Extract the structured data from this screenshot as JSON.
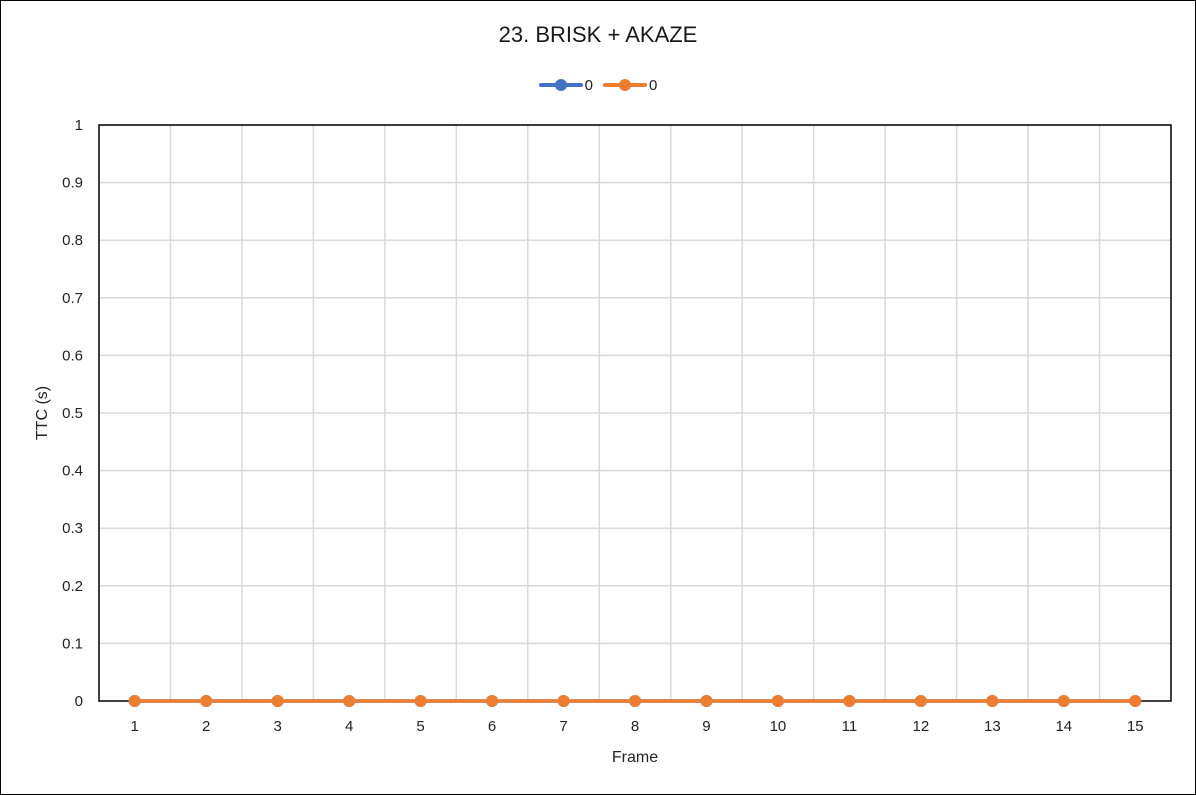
{
  "chart_data": {
    "type": "line",
    "title": "23. BRISK + AKAZE",
    "xlabel": "Frame",
    "ylabel": "TTC (s)",
    "categories": [
      "1",
      "2",
      "3",
      "4",
      "5",
      "6",
      "7",
      "8",
      "9",
      "10",
      "11",
      "12",
      "13",
      "14",
      "15"
    ],
    "y_ticks": [
      "0",
      "0.1",
      "0.2",
      "0.3",
      "0.4",
      "0.5",
      "0.6",
      "0.7",
      "0.8",
      "0.9",
      "1"
    ],
    "ylim": [
      0,
      1
    ],
    "grid": true,
    "legend_position": "top",
    "series": [
      {
        "name": "0",
        "color": "#4472C4",
        "values": [
          0,
          0,
          0,
          0,
          0,
          0,
          0,
          0,
          0,
          0,
          0,
          0,
          0,
          0,
          0
        ]
      },
      {
        "name": "0",
        "color": "#ED7D31",
        "values": [
          0,
          0,
          0,
          0,
          0,
          0,
          0,
          0,
          0,
          0,
          0,
          0,
          0,
          0,
          0
        ]
      }
    ]
  }
}
